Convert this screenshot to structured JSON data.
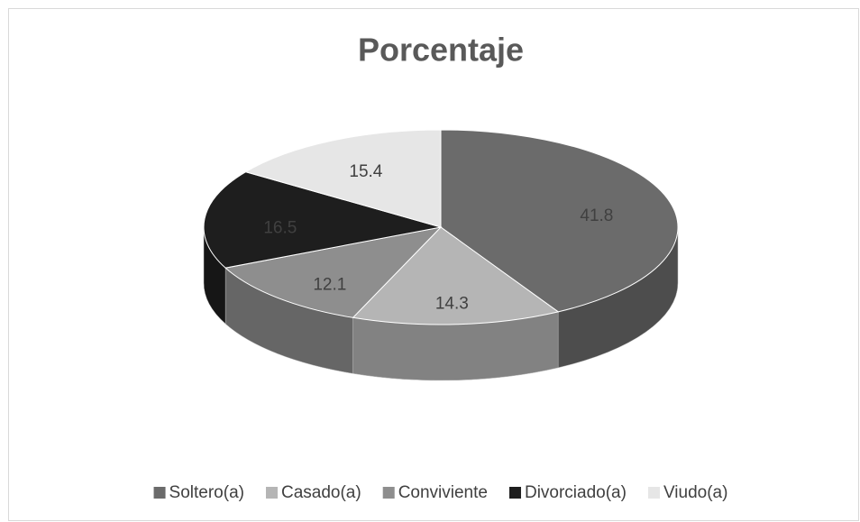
{
  "chart_data": {
    "type": "pie",
    "title": "Porcentaje",
    "categories": [
      "Soltero(a)",
      "Casado(a)",
      "Conviviente",
      "Divorciado(a)",
      "Viudo(a)"
    ],
    "values": [
      41.8,
      14.3,
      12.1,
      16.5,
      15.4
    ],
    "colors": [
      "#6b6b6b",
      "#b5b5b5",
      "#8e8e8e",
      "#1e1e1e",
      "#e6e6e6"
    ],
    "legend": "bottom"
  }
}
